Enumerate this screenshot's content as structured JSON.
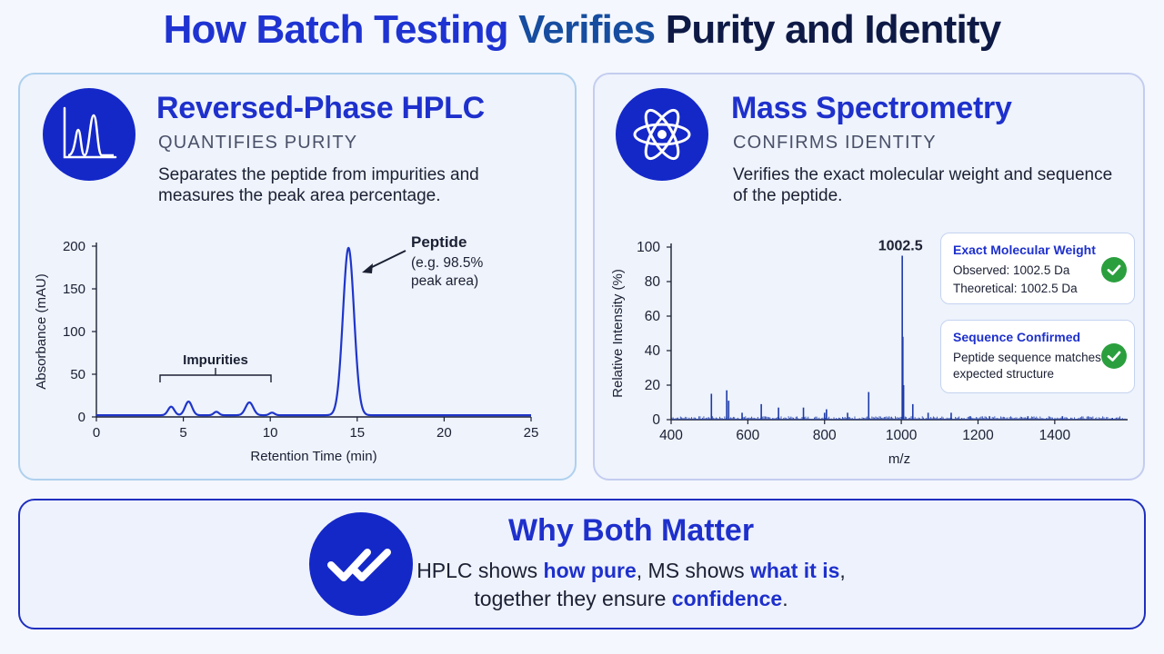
{
  "page_title": {
    "part1": "How Batch Testing",
    "part2": "Verifies",
    "part3": "Purity and Identity"
  },
  "hplc": {
    "icon": "chromatogram-icon",
    "title": "Reversed-Phase HPLC",
    "subtitle": "QUANTIFIES PURITY",
    "description": "Separates the peptide from impurities and measures the peak area percentage.",
    "peptide_label": "Peptide",
    "peptide_note_1": "(e.g. 98.5%",
    "peptide_note_2": "peak area)",
    "impurities_label": "Impurities"
  },
  "ms": {
    "icon": "atom-icon",
    "title": "Mass Spectrometry",
    "subtitle": "CONFIRMS IDENTITY",
    "description": "Verifies the exact molecular weight and sequence of the peptide.",
    "peak_label": "1002.5",
    "weight_box": {
      "title": "Exact Molecular Weight",
      "observed": "Observed: 1002.5 Da",
      "theoretical": "Theoretical: 1002.5 Da",
      "icon": "check-icon"
    },
    "sequence_box": {
      "title": "Sequence Confirmed",
      "line1": "Peptide sequence matches",
      "line2": "expected structure",
      "icon": "check-icon"
    }
  },
  "both": {
    "icon": "double-check-icon",
    "title": "Why Both Matter",
    "line1_a": "HPLC shows ",
    "line1_b": "how pure",
    "line1_c": ", MS shows ",
    "line1_d": "what it is",
    "line1_e": ",",
    "line2_a": "together they ensure ",
    "line2_b": "confidence",
    "line2_c": "."
  },
  "colors": {
    "accent": "#1e30cc",
    "icon_circle": "#1428c8",
    "line": "#1f35c9",
    "check": "#2b9f3e"
  },
  "chart_data": [
    {
      "type": "line",
      "xlabel": "Retention Time (min)",
      "ylabel": "Absorbance (mAU)",
      "xlim": [
        0,
        25
      ],
      "ylim": [
        0,
        200
      ],
      "xticks": [
        0,
        5,
        10,
        15,
        20,
        25
      ],
      "yticks": [
        0,
        50,
        100,
        150,
        200
      ],
      "grid": false,
      "baseline": 2,
      "peaks": [
        {
          "center": 4.3,
          "height": 10,
          "width": 0.18
        },
        {
          "center": 5.3,
          "height": 16,
          "width": 0.2
        },
        {
          "center": 6.9,
          "height": 4,
          "width": 0.15
        },
        {
          "center": 8.8,
          "height": 15,
          "width": 0.22
        },
        {
          "center": 10.1,
          "height": 3,
          "width": 0.15
        },
        {
          "center": 14.5,
          "height": 196,
          "width": 0.32
        }
      ]
    },
    {
      "type": "bar",
      "xlabel": "m/z",
      "ylabel": "Relative Intensity (%)",
      "xlim": [
        400,
        1590
      ],
      "ylim": [
        0,
        100
      ],
      "xticks": [
        400,
        600,
        800,
        1000,
        1200,
        1400
      ],
      "yticks": [
        0,
        20,
        40,
        60,
        80,
        100
      ],
      "grid": false,
      "peaks": [
        {
          "mz": 505,
          "intensity": 15
        },
        {
          "mz": 545,
          "intensity": 17
        },
        {
          "mz": 550,
          "intensity": 11
        },
        {
          "mz": 585,
          "intensity": 4
        },
        {
          "mz": 635,
          "intensity": 9
        },
        {
          "mz": 680,
          "intensity": 7
        },
        {
          "mz": 745,
          "intensity": 7
        },
        {
          "mz": 800,
          "intensity": 4
        },
        {
          "mz": 805,
          "intensity": 6
        },
        {
          "mz": 860,
          "intensity": 4
        },
        {
          "mz": 915,
          "intensity": 16
        },
        {
          "mz": 1002.5,
          "intensity": 95
        },
        {
          "mz": 1004,
          "intensity": 48
        },
        {
          "mz": 1006,
          "intensity": 20
        },
        {
          "mz": 1030,
          "intensity": 9
        },
        {
          "mz": 1070,
          "intensity": 4
        },
        {
          "mz": 1130,
          "intensity": 4
        },
        {
          "mz": 1180,
          "intensity": 2
        },
        {
          "mz": 1230,
          "intensity": 2
        },
        {
          "mz": 1330,
          "intensity": 2
        },
        {
          "mz": 1420,
          "intensity": 2
        },
        {
          "mz": 1550,
          "intensity": 1
        }
      ]
    }
  ]
}
